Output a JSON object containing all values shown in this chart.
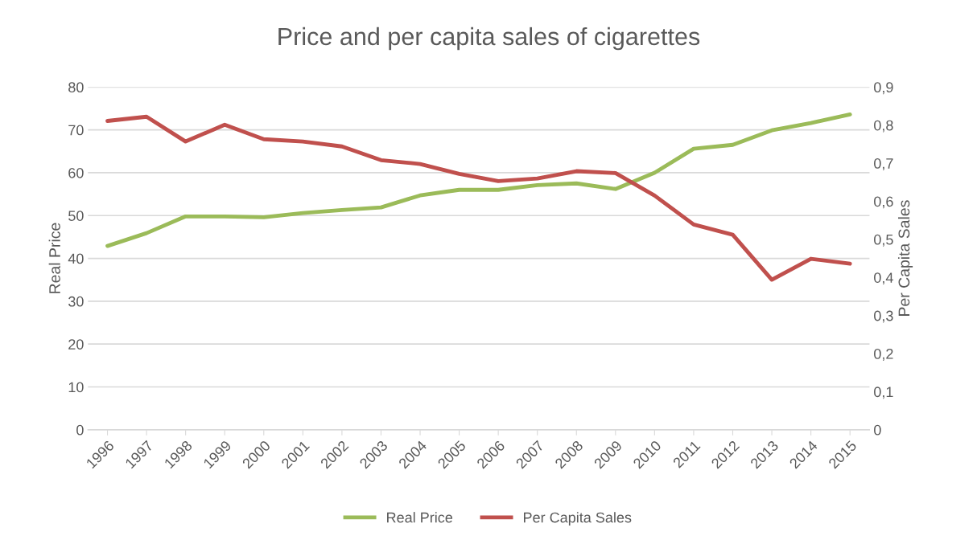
{
  "chart_data": {
    "type": "line",
    "title": "Price and per capita sales of cigarettes",
    "ylabel": "Real Price",
    "y2label": "Per Capita Sales",
    "categories": [
      "1996",
      "1997",
      "1998",
      "1999",
      "2000",
      "2001",
      "2002",
      "2003",
      "2004",
      "2005",
      "2006",
      "2007",
      "2008",
      "2009",
      "2010",
      "2011",
      "2012",
      "2013",
      "2014",
      "2015"
    ],
    "series": [
      {
        "name": "Real Price",
        "color": "#9bbb59",
        "values": [
          42.9,
          45.9,
          49.8,
          49.8,
          49.6,
          50.6,
          51.3,
          51.9,
          54.7,
          56.0,
          56.0,
          57.1,
          57.5,
          56.2,
          60.0,
          65.6,
          66.5,
          69.9,
          71.6,
          73.6
        ]
      },
      {
        "name": "Per Capita Sales",
        "color": "#c0504d",
        "axis": "y2",
        "values": [
          0.811,
          0.822,
          0.757,
          0.801,
          0.763,
          0.757,
          0.744,
          0.708,
          0.698,
          0.672,
          0.653,
          0.66,
          0.679,
          0.674,
          0.615,
          0.539,
          0.512,
          0.394,
          0.449,
          0.436
        ]
      }
    ],
    "ylim": [
      0,
      80
    ],
    "yticks": [
      0,
      10,
      20,
      30,
      40,
      50,
      60,
      70,
      80
    ],
    "y2lim": [
      0,
      0.9
    ],
    "y2ticks": [
      {
        "value": 0,
        "label": "0"
      },
      {
        "value": 0.1,
        "label": "0,1"
      },
      {
        "value": 0.2,
        "label": "0,2"
      },
      {
        "value": 0.3,
        "label": "0,3"
      },
      {
        "value": 0.4,
        "label": "0,4"
      },
      {
        "value": 0.5,
        "label": "0,5"
      },
      {
        "value": 0.6,
        "label": "0,6"
      },
      {
        "value": 0.7,
        "label": "0,7"
      },
      {
        "value": 0.8,
        "label": "0,8"
      },
      {
        "value": 0.9,
        "label": "0,9"
      }
    ],
    "grid": "y",
    "legend": "bottom",
    "marker": "none",
    "line_style": "solid"
  }
}
